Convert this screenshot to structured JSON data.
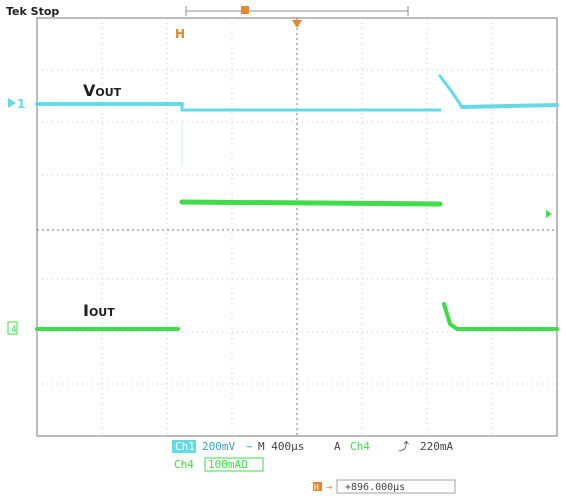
{
  "status": {
    "text": "Tek Stop"
  },
  "markers": {
    "trigger_position": "T",
    "trigger_point": "T",
    "horizontal_marker": "H",
    "ch1": "1",
    "ch4": "4"
  },
  "waveforms": {
    "vout_label": "V",
    "vout_sub": "OUT",
    "iout_label": "I",
    "iout_sub": "OUT"
  },
  "readout": {
    "ch1_badge": "Ch1",
    "ch1_scale": "200mV",
    "ch1_coupling": "~",
    "timebase": "M 400µs",
    "trigger_label": "A",
    "trigger_source": "Ch4",
    "trigger_slope": "⤴",
    "trigger_level": "220mA",
    "ch4_badge": "Ch4",
    "ch4_scale": "100mAΩ",
    "horizontal_pos_marker": "H",
    "horizontal_pos_arrow": "→",
    "horizontal_position": "+896.000µs"
  },
  "colors": {
    "ch1": "#66d9e6",
    "ch4": "#3fdc4a",
    "grid": "#a0a0a0",
    "trigger": "#e08a30"
  }
}
